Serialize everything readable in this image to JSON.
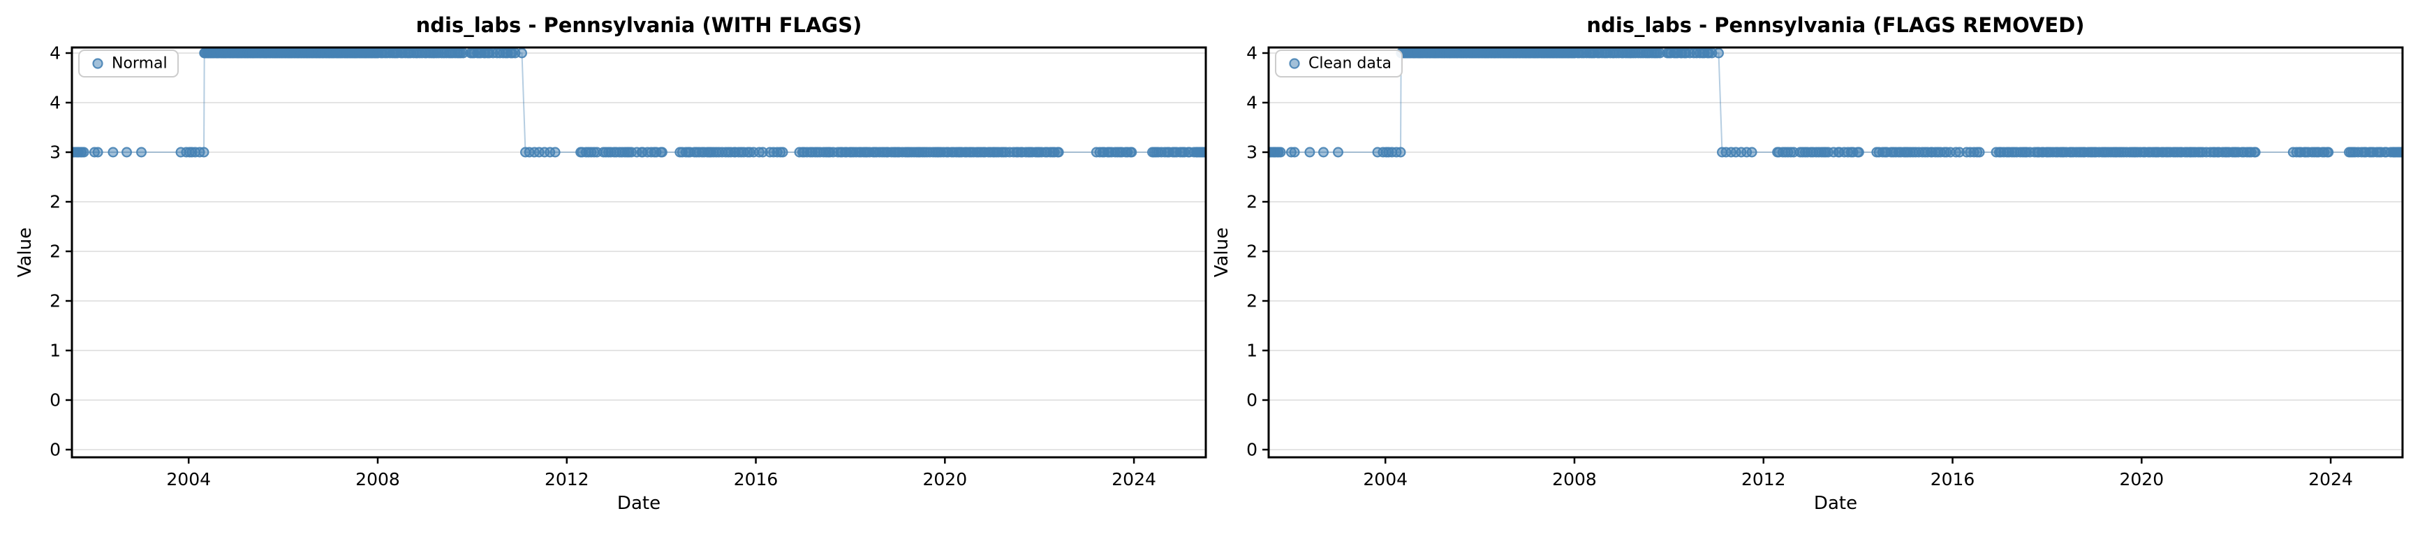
{
  "figure": {
    "background": "#ffffff"
  },
  "style": {
    "marker_color": "#4682b4",
    "marker_fill_opacity": 0.5,
    "marker_edge_opacity": 0.9,
    "line_color": "#4682b4",
    "line_opacity": 0.4,
    "grid_color": "#e4e4e4",
    "spine_color": "#000000",
    "tick_color": "#000000",
    "legend_border_color": "#cccccc",
    "legend_background": "#ffffff"
  },
  "chart_data": [
    {
      "type": "scatter",
      "title": "ndis_labs - Pennsylvania (WITH FLAGS)",
      "xlabel": "Date",
      "ylabel": "Value",
      "legend": [
        "Normal"
      ],
      "legend_position": "upper left",
      "grid": "horizontal",
      "xlim": [
        2001.53,
        2025.52
      ],
      "ylim": [
        0,
        4
      ],
      "xticks": [
        2004,
        2008,
        2012,
        2016,
        2020,
        2024
      ],
      "ytick_values": [
        4.0,
        3.5,
        3.0,
        2.5,
        2.0,
        1.5,
        1.0,
        0.5,
        0.0
      ],
      "ytick_labels": [
        "4",
        "4",
        "3",
        "2",
        "2",
        "2",
        "1",
        "0",
        "0"
      ],
      "series_summary": [
        {
          "value": 3,
          "from": 2001.55,
          "to": 2004.31
        },
        {
          "value": 4,
          "from": 2004.33,
          "to": 2011.05
        },
        {
          "value": 3,
          "from": 2011.15,
          "to": 2025.5
        }
      ],
      "point_clusters": [
        [
          3,
          2001.55,
          2001.78,
          8
        ],
        [
          3,
          2001.98,
          2002.08,
          2
        ],
        [
          3,
          2002.4,
          2002.4,
          1
        ],
        [
          3,
          2002.69,
          2002.69,
          1
        ],
        [
          3,
          2003.0,
          2003.0,
          1
        ],
        [
          3,
          2003.85,
          2004.31,
          7
        ],
        [
          4,
          2004.33,
          2008.0,
          150
        ],
        [
          4,
          2008.02,
          2009.81,
          40
        ],
        [
          4,
          2009.95,
          2010.38,
          10
        ],
        [
          4,
          2010.46,
          2010.92,
          9
        ],
        [
          4,
          2011.05,
          2011.05,
          1
        ],
        [
          3,
          2011.15,
          2011.33,
          3
        ],
        [
          3,
          2011.42,
          2011.73,
          4
        ],
        [
          3,
          2012.28,
          2012.64,
          7
        ],
        [
          3,
          2012.78,
          2013.39,
          12
        ],
        [
          3,
          2013.5,
          2013.69,
          4
        ],
        [
          3,
          2013.79,
          2014.04,
          5
        ],
        [
          3,
          2014.4,
          2014.96,
          11
        ],
        [
          3,
          2015.01,
          2015.87,
          16
        ],
        [
          3,
          2015.97,
          2016.12,
          3
        ],
        [
          3,
          2016.31,
          2016.56,
          5
        ],
        [
          3,
          2016.92,
          2017.63,
          14
        ],
        [
          3,
          2017.73,
          2021.35,
          75
        ],
        [
          3,
          2021.45,
          2022.42,
          20
        ],
        [
          3,
          2023.22,
          2023.97,
          15
        ],
        [
          3,
          2024.37,
          2025.19,
          16
        ],
        [
          3,
          2025.28,
          2025.5,
          8
        ]
      ]
    },
    {
      "type": "scatter",
      "title": "ndis_labs - Pennsylvania (FLAGS REMOVED)",
      "xlabel": "Date",
      "ylabel": "Value",
      "legend": [
        "Clean data"
      ],
      "legend_position": "upper left",
      "grid": "horizontal",
      "xlim": [
        2001.53,
        2025.52
      ],
      "ylim": [
        0,
        4
      ],
      "xticks": [
        2004,
        2008,
        2012,
        2016,
        2020,
        2024
      ],
      "ytick_values": [
        4.0,
        3.5,
        3.0,
        2.5,
        2.0,
        1.5,
        1.0,
        0.5,
        0.0
      ],
      "ytick_labels": [
        "4",
        "4",
        "3",
        "2",
        "2",
        "2",
        "1",
        "0",
        "0"
      ],
      "series_summary": [
        {
          "value": 3,
          "from": 2001.55,
          "to": 2004.31
        },
        {
          "value": 4,
          "from": 2004.33,
          "to": 2011.05
        },
        {
          "value": 3,
          "from": 2011.15,
          "to": 2025.5
        }
      ],
      "point_clusters": [
        [
          3,
          2001.55,
          2001.78,
          8
        ],
        [
          3,
          2001.98,
          2002.08,
          2
        ],
        [
          3,
          2002.4,
          2002.4,
          1
        ],
        [
          3,
          2002.69,
          2002.69,
          1
        ],
        [
          3,
          2003.0,
          2003.0,
          1
        ],
        [
          3,
          2003.85,
          2004.31,
          7
        ],
        [
          4,
          2004.33,
          2008.0,
          150
        ],
        [
          4,
          2008.02,
          2009.81,
          40
        ],
        [
          4,
          2009.95,
          2010.38,
          10
        ],
        [
          4,
          2010.46,
          2010.92,
          9
        ],
        [
          4,
          2011.05,
          2011.05,
          1
        ],
        [
          3,
          2011.15,
          2011.33,
          3
        ],
        [
          3,
          2011.42,
          2011.73,
          4
        ],
        [
          3,
          2012.28,
          2012.64,
          7
        ],
        [
          3,
          2012.78,
          2013.39,
          12
        ],
        [
          3,
          2013.5,
          2013.69,
          4
        ],
        [
          3,
          2013.79,
          2014.04,
          5
        ],
        [
          3,
          2014.4,
          2014.96,
          11
        ],
        [
          3,
          2015.01,
          2015.87,
          16
        ],
        [
          3,
          2015.97,
          2016.12,
          3
        ],
        [
          3,
          2016.31,
          2016.56,
          5
        ],
        [
          3,
          2016.92,
          2017.63,
          14
        ],
        [
          3,
          2017.73,
          2021.35,
          75
        ],
        [
          3,
          2021.45,
          2022.42,
          20
        ],
        [
          3,
          2023.22,
          2023.97,
          15
        ],
        [
          3,
          2024.37,
          2025.19,
          16
        ],
        [
          3,
          2025.28,
          2025.5,
          8
        ]
      ]
    }
  ]
}
